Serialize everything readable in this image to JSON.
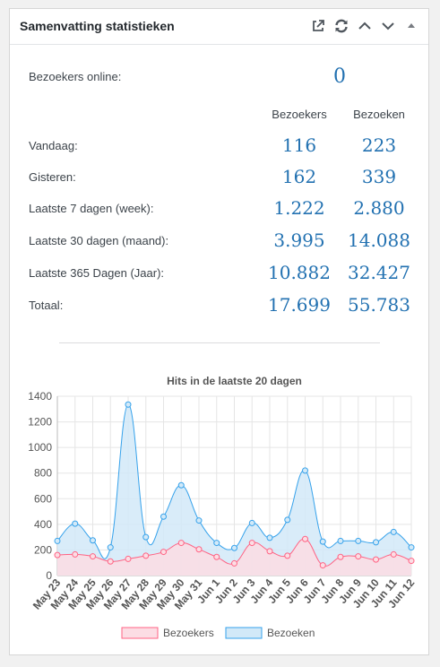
{
  "widget": {
    "title": "Samenvatting statistieken",
    "icons": [
      "external-link-icon",
      "refresh-icon",
      "chevron-up-icon",
      "chevron-down-icon",
      "caret-up-icon"
    ]
  },
  "stats": {
    "online_label": "Bezoekers online:",
    "online_value": "0",
    "col_visitors": "Bezoekers",
    "col_visits": "Bezoeken",
    "rows": [
      {
        "label": "Vandaag:",
        "visitors": "116",
        "visits": "223"
      },
      {
        "label": "Gisteren:",
        "visitors": "162",
        "visits": "339"
      },
      {
        "label": "Laatste 7 dagen (week):",
        "visitors": "1.222",
        "visits": "2.880"
      },
      {
        "label": "Laatste 30 dagen (maand):",
        "visitors": "3.995",
        "visits": "14.088"
      },
      {
        "label": "Laatste 365 Dagen (Jaar):",
        "visitors": "10.882",
        "visits": "32.427"
      },
      {
        "label": "Totaal:",
        "visitors": "17.699",
        "visits": "55.783"
      }
    ]
  },
  "chart_data": {
    "type": "area",
    "title": "Hits in de laatste 20 dagen",
    "categories": [
      "May 23",
      "May 24",
      "May 25",
      "May 26",
      "May 27",
      "May 28",
      "May 29",
      "May 30",
      "May 31",
      "Jun 1",
      "Jun 2",
      "Jun 3",
      "Jun 4",
      "Jun 5",
      "Jun 6",
      "Jun 7",
      "Jun 8",
      "Jun 9",
      "Jun 10",
      "Jun 11",
      "Jun 12"
    ],
    "ylim": [
      0,
      1400
    ],
    "yticks": [
      "0",
      "200",
      "400",
      "600",
      "800",
      "1000",
      "1200",
      "1400"
    ],
    "grid": true,
    "legend_position": "bottom",
    "series": [
      {
        "name": "Bezoekers",
        "color": "#ff6384",
        "fill": "#fcdde4",
        "values": [
          160,
          165,
          150,
          110,
          130,
          155,
          185,
          255,
          205,
          145,
          95,
          255,
          190,
          155,
          285,
          80,
          145,
          150,
          125,
          165,
          115
        ]
      },
      {
        "name": "Bezoeken",
        "color": "#36a2eb",
        "fill": "#d2e9f8",
        "values": [
          270,
          405,
          275,
          220,
          1335,
          300,
          460,
          705,
          430,
          255,
          215,
          410,
          295,
          435,
          820,
          265,
          270,
          270,
          260,
          340,
          220
        ]
      }
    ]
  }
}
